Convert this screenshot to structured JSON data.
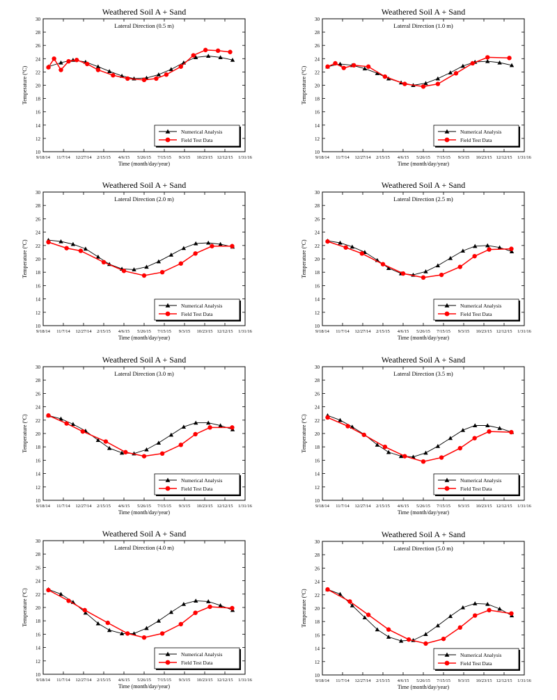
{
  "shared": {
    "x_tick_labels": [
      "9/18/14",
      "11/7/14",
      "12/27/14",
      "2/15/15",
      "4/6/15",
      "5/26/15",
      "7/15/15",
      "9/3/15",
      "10/23/15",
      "12/12/15",
      "1/31/16"
    ],
    "y_ticks": [
      10,
      12,
      14,
      16,
      18,
      20,
      22,
      24,
      26,
      28,
      30
    ],
    "colors": {
      "numerical": "#000000",
      "field": "#ff0000"
    }
  },
  "chart_data": [
    {
      "type": "line",
      "title": "Weathered Soil A + Sand",
      "subtitle": "Lateral Direction (0.5 m)",
      "xlabel": "Time (month/day/year)",
      "ylabel": "Temperature (ºC)",
      "xlim": [
        "9/18/14",
        "1/31/16"
      ],
      "ylim": [
        10,
        30
      ],
      "grid": false,
      "legend_position": "bottom-right",
      "series": [
        {
          "name": "Numerical Analysis",
          "marker": "triangle",
          "color": "#000000",
          "x": [
            "10/1/14",
            "11/1/14",
            "12/1/14",
            "1/1/15",
            "2/1/15",
            "3/1/15",
            "4/1/15",
            "5/1/15",
            "6/1/15",
            "7/1/15",
            "8/1/15",
            "9/1/15",
            "10/1/15",
            "11/1/15",
            "12/1/15",
            "12/31/15"
          ],
          "y": [
            22.8,
            23.4,
            23.8,
            23.5,
            22.8,
            22.1,
            21.4,
            21.0,
            21.1,
            21.6,
            22.4,
            23.4,
            24.2,
            24.4,
            24.2,
            23.8
          ]
        },
        {
          "name": "Field Test Data",
          "marker": "circle",
          "color": "#ff0000",
          "x": [
            "10/1/14",
            "10/15/14",
            "11/1/14",
            "11/20/14",
            "12/10/14",
            "1/5/15",
            "2/1/15",
            "3/10/15",
            "4/15/15",
            "5/26/15",
            "6/25/15",
            "7/20/15",
            "8/25/15",
            "9/25/15",
            "10/25/15",
            "11/25/15",
            "12/25/15"
          ],
          "y": [
            22.7,
            24.0,
            22.3,
            23.6,
            23.8,
            23.2,
            22.3,
            21.5,
            21.0,
            20.8,
            21.0,
            21.6,
            22.8,
            24.5,
            25.3,
            25.2,
            25.0
          ]
        }
      ]
    },
    {
      "type": "line",
      "title": "Weathered Soil A + Sand",
      "subtitle": "Lateral Direction (1.0 m)",
      "xlabel": "Time (month/day/year)",
      "ylabel": "Temperature (ºC)",
      "xlim": [
        "9/18/14",
        "1/31/16"
      ],
      "ylim": [
        10,
        30
      ],
      "grid": false,
      "legend_position": "bottom-right",
      "series": [
        {
          "name": "Numerical Analysis",
          "marker": "triangle",
          "color": "#000000",
          "x": [
            "10/1/14",
            "11/1/14",
            "12/1/14",
            "1/1/15",
            "2/1/15",
            "3/1/15",
            "4/1/15",
            "5/1/15",
            "6/1/15",
            "7/1/15",
            "8/1/15",
            "9/1/15",
            "10/1/15",
            "11/1/15",
            "12/1/15",
            "12/31/15"
          ],
          "y": [
            22.8,
            23.2,
            23.0,
            22.5,
            21.8,
            21.0,
            20.4,
            20.0,
            20.3,
            21.0,
            21.9,
            22.9,
            23.5,
            23.6,
            23.4,
            23.0
          ]
        },
        {
          "name": "Field Test Data",
          "marker": "circle",
          "color": "#ff0000",
          "x": [
            "10/1/14",
            "10/20/14",
            "11/10/14",
            "12/5/14",
            "1/10/15",
            "2/20/15",
            "4/10/15",
            "5/26/15",
            "7/1/15",
            "8/15/15",
            "9/25/15",
            "11/1/15",
            "12/25/15"
          ],
          "y": [
            22.8,
            23.3,
            22.6,
            23.0,
            22.8,
            21.3,
            20.2,
            19.8,
            20.2,
            21.8,
            23.3,
            24.2,
            24.1
          ]
        }
      ]
    },
    {
      "type": "line",
      "title": "Weathered Soil A + Sand",
      "subtitle": "Lateral Direction (2.0 m)",
      "xlabel": "Time (month/day/year)",
      "ylabel": "Temperature (ºC)",
      "xlim": [
        "9/18/14",
        "1/31/16"
      ],
      "ylim": [
        10,
        30
      ],
      "grid": false,
      "legend_position": "bottom-right",
      "series": [
        {
          "name": "Numerical Analysis",
          "marker": "triangle",
          "color": "#000000",
          "x": [
            "10/1/14",
            "11/1/14",
            "12/1/14",
            "1/1/15",
            "2/1/15",
            "3/1/15",
            "4/1/15",
            "5/1/15",
            "6/1/15",
            "7/1/15",
            "8/1/15",
            "9/1/15",
            "10/1/15",
            "11/1/15",
            "12/1/15",
            "12/31/15"
          ],
          "y": [
            22.8,
            22.6,
            22.2,
            21.5,
            20.3,
            19.2,
            18.5,
            18.4,
            18.8,
            19.6,
            20.6,
            21.6,
            22.3,
            22.4,
            22.2,
            21.8
          ]
        },
        {
          "name": "Field Test Data",
          "marker": "circle",
          "color": "#ff0000",
          "x": [
            "10/1/14",
            "11/15/14",
            "12/20/14",
            "2/15/15",
            "4/6/15",
            "5/26/15",
            "7/10/15",
            "8/25/15",
            "9/30/15",
            "11/10/15",
            "12/30/15"
          ],
          "y": [
            22.5,
            21.6,
            21.2,
            19.5,
            18.2,
            17.5,
            18.0,
            19.3,
            20.8,
            21.9,
            21.9
          ]
        }
      ]
    },
    {
      "type": "line",
      "title": "Weathered Soil A + Sand",
      "subtitle": "Lateral Direction (2.5 m)",
      "xlabel": "Time (month/day/year)",
      "ylabel": "Temperature (ºC)",
      "xlim": [
        "9/18/14",
        "1/31/16"
      ],
      "ylim": [
        10,
        30
      ],
      "grid": false,
      "legend_position": "bottom-right",
      "series": [
        {
          "name": "Numerical Analysis",
          "marker": "triangle",
          "color": "#000000",
          "x": [
            "10/1/14",
            "11/1/14",
            "12/1/14",
            "1/1/15",
            "2/1/15",
            "3/1/15",
            "4/1/15",
            "5/1/15",
            "6/1/15",
            "7/1/15",
            "8/1/15",
            "9/1/15",
            "10/1/15",
            "11/1/15",
            "12/1/15",
            "12/31/15"
          ],
          "y": [
            22.7,
            22.4,
            21.8,
            21.0,
            19.8,
            18.6,
            17.8,
            17.6,
            18.1,
            19.0,
            20.1,
            21.2,
            21.9,
            22.0,
            21.7,
            21.1
          ]
        },
        {
          "name": "Field Test Data",
          "marker": "circle",
          "color": "#ff0000",
          "x": [
            "10/1/14",
            "11/15/14",
            "12/25/14",
            "2/15/15",
            "4/6/15",
            "5/26/15",
            "7/10/15",
            "8/25/15",
            "9/30/15",
            "11/5/15",
            "12/30/15"
          ],
          "y": [
            22.6,
            21.7,
            20.8,
            19.2,
            17.8,
            17.2,
            17.6,
            18.8,
            20.4,
            21.4,
            21.5
          ]
        }
      ]
    },
    {
      "type": "line",
      "title": "Weathered Soil A + Sand",
      "subtitle": "Lateral Direction (3.0 m)",
      "xlabel": "Time (month/day/year)",
      "ylabel": "Temperature (ºC)",
      "xlim": [
        "9/18/14",
        "1/31/16"
      ],
      "ylim": [
        10,
        30
      ],
      "grid": false,
      "legend_position": "bottom-right",
      "series": [
        {
          "name": "Numerical Analysis",
          "marker": "triangle",
          "color": "#000000",
          "x": [
            "10/1/14",
            "11/1/14",
            "12/1/14",
            "1/1/15",
            "2/1/15",
            "3/1/15",
            "4/1/15",
            "5/1/15",
            "6/1/15",
            "7/1/15",
            "8/1/15",
            "9/1/15",
            "10/1/15",
            "11/1/15",
            "12/1/15",
            "12/31/15"
          ],
          "y": [
            22.7,
            22.2,
            21.4,
            20.4,
            19.0,
            17.8,
            17.1,
            17.0,
            17.6,
            18.6,
            19.8,
            21.0,
            21.6,
            21.6,
            21.2,
            20.6
          ]
        },
        {
          "name": "Field Test Data",
          "marker": "circle",
          "color": "#ff0000",
          "x": [
            "10/1/14",
            "11/15/14",
            "12/25/14",
            "2/20/15",
            "4/10/15",
            "5/26/15",
            "7/10/15",
            "8/25/15",
            "9/30/15",
            "11/5/15",
            "12/30/15"
          ],
          "y": [
            22.7,
            21.5,
            20.3,
            18.8,
            17.2,
            16.6,
            17.0,
            18.3,
            19.9,
            20.9,
            20.9
          ]
        }
      ]
    },
    {
      "type": "line",
      "title": "Weathered Soil A + Sand",
      "subtitle": "Lateral Direction (3.5 m)",
      "xlabel": "Time (month/day/year)",
      "ylabel": "Temperature (ºC)",
      "xlim": [
        "9/18/14",
        "1/31/16"
      ],
      "ylim": [
        10,
        30
      ],
      "grid": false,
      "legend_position": "bottom-right",
      "series": [
        {
          "name": "Numerical Analysis",
          "marker": "triangle",
          "color": "#000000",
          "x": [
            "10/1/14",
            "11/1/14",
            "12/1/14",
            "1/1/15",
            "2/1/15",
            "3/1/15",
            "4/1/15",
            "5/1/15",
            "6/1/15",
            "7/1/15",
            "8/1/15",
            "9/1/15",
            "10/1/15",
            "11/1/15",
            "12/1/15",
            "12/31/15"
          ],
          "y": [
            22.7,
            22.0,
            21.0,
            19.8,
            18.3,
            17.2,
            16.6,
            16.5,
            17.1,
            18.1,
            19.3,
            20.5,
            21.2,
            21.2,
            20.8,
            20.2
          ]
        },
        {
          "name": "Field Test Data",
          "marker": "circle",
          "color": "#ff0000",
          "x": [
            "10/1/14",
            "11/20/14",
            "12/30/14",
            "2/20/15",
            "4/10/15",
            "5/26/15",
            "7/10/15",
            "8/25/15",
            "9/30/15",
            "11/5/15",
            "12/30/15"
          ],
          "y": [
            22.4,
            21.1,
            19.8,
            18.0,
            16.6,
            15.8,
            16.4,
            17.8,
            19.3,
            20.3,
            20.2
          ]
        }
      ]
    },
    {
      "type": "line",
      "title": "Weathered Soil A + Sand",
      "subtitle": "Lateral Direction (4.0 m)",
      "xlabel": "Time (month/day/year)",
      "ylabel": "Temperature (ºC)",
      "xlim": [
        "9/18/14",
        "1/31/16"
      ],
      "ylim": [
        10,
        30
      ],
      "grid": false,
      "legend_position": "bottom-right",
      "series": [
        {
          "name": "Numerical Analysis",
          "marker": "triangle",
          "color": "#000000",
          "x": [
            "10/1/14",
            "11/1/14",
            "12/1/14",
            "1/1/15",
            "2/1/15",
            "3/1/15",
            "4/1/15",
            "5/1/15",
            "6/1/15",
            "7/1/15",
            "8/1/15",
            "9/1/15",
            "10/1/15",
            "11/1/15",
            "12/1/15",
            "12/31/15"
          ],
          "y": [
            22.7,
            22.0,
            20.8,
            19.2,
            17.6,
            16.6,
            16.1,
            16.1,
            16.9,
            18.0,
            19.3,
            20.5,
            21.0,
            20.9,
            20.3,
            19.6
          ]
        },
        {
          "name": "Field Test Data",
          "marker": "circle",
          "color": "#ff0000",
          "x": [
            "10/1/14",
            "11/20/14",
            "12/30/14",
            "2/25/15",
            "4/15/15",
            "5/26/15",
            "7/10/15",
            "8/25/15",
            "9/30/15",
            "11/5/15",
            "12/30/15"
          ],
          "y": [
            22.6,
            21.0,
            19.6,
            17.7,
            16.1,
            15.5,
            16.1,
            17.5,
            19.2,
            20.1,
            19.9
          ]
        }
      ]
    },
    {
      "type": "line",
      "title": "Weathered Soil A + Sand",
      "subtitle": "Lateral Direction (5.0 m)",
      "xlabel": "Time (month/day/year)",
      "ylabel": "Temperature (ºC)",
      "xlim": [
        "9/18/14",
        "1/31/16"
      ],
      "ylim": [
        10,
        30
      ],
      "grid": false,
      "legend_position": "bottom-right",
      "series": [
        {
          "name": "Numerical Analysis",
          "marker": "triangle",
          "color": "#000000",
          "x": [
            "10/1/14",
            "11/1/14",
            "12/1/14",
            "1/1/15",
            "2/1/15",
            "3/1/15",
            "4/1/15",
            "5/1/15",
            "6/1/15",
            "7/1/15",
            "8/1/15",
            "9/1/15",
            "10/1/15",
            "11/1/15",
            "12/1/15",
            "12/31/15"
          ],
          "y": [
            22.8,
            22.1,
            20.4,
            18.6,
            16.8,
            15.7,
            15.1,
            15.2,
            16.1,
            17.4,
            18.8,
            20.1,
            20.7,
            20.6,
            19.9,
            18.9
          ]
        },
        {
          "name": "Field Test Data",
          "marker": "circle",
          "color": "#ff0000",
          "x": [
            "10/1/14",
            "11/25/14",
            "1/10/15",
            "3/1/15",
            "4/20/15",
            "6/1/15",
            "7/15/15",
            "8/25/15",
            "10/1/15",
            "11/5/15",
            "12/30/15"
          ],
          "y": [
            22.8,
            21.0,
            19.0,
            16.8,
            15.3,
            14.7,
            15.4,
            17.1,
            18.9,
            19.7,
            19.2
          ]
        }
      ]
    }
  ]
}
